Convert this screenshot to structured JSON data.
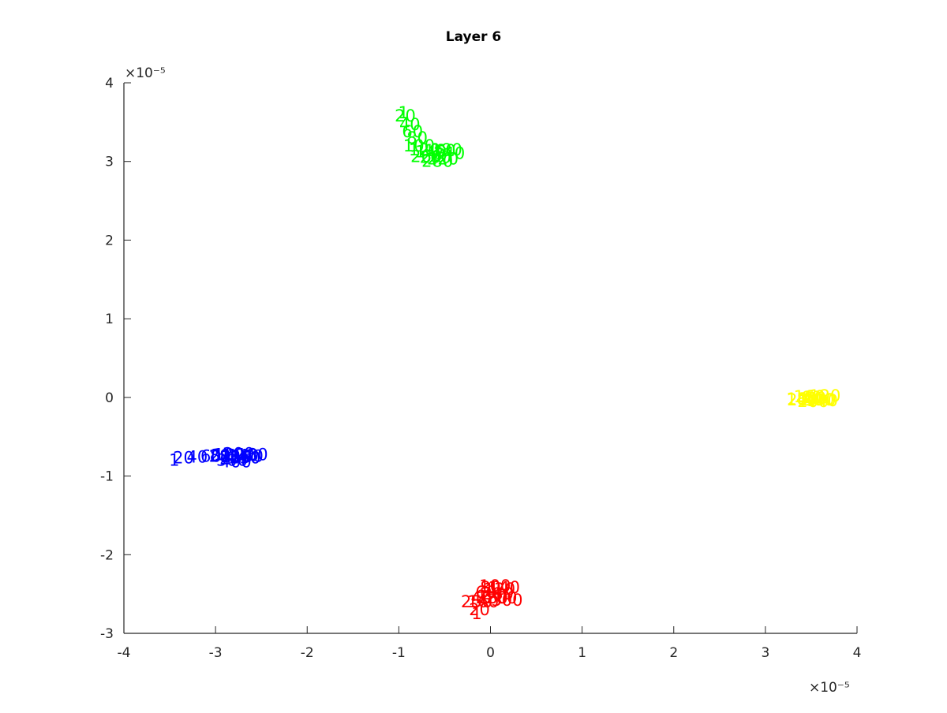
{
  "chart_data": {
    "type": "scatter",
    "title": "Layer 6",
    "xlabel": "",
    "ylabel": "",
    "xlim": [
      -4,
      4
    ],
    "ylim": [
      -3,
      4
    ],
    "x_exponent_label": "×10⁻⁵",
    "y_exponent_label": "×10⁻⁵",
    "xticks": [
      "-4",
      "-3",
      "-2",
      "-1",
      "0",
      "1",
      "2",
      "3",
      "4"
    ],
    "yticks": [
      "-3",
      "-2",
      "-1",
      "0",
      "1",
      "2",
      "3",
      "4"
    ],
    "grid": false,
    "legend": "none",
    "series": [
      {
        "color": "#00ff00",
        "points": [
          {
            "x": -0.95,
            "y": 3.62,
            "label": "1"
          },
          {
            "x": -0.93,
            "y": 3.58,
            "label": "20"
          },
          {
            "x": -0.88,
            "y": 3.47,
            "label": "40"
          },
          {
            "x": -0.85,
            "y": 3.38,
            "label": "60"
          },
          {
            "x": -0.8,
            "y": 3.3,
            "label": "80"
          },
          {
            "x": -0.78,
            "y": 3.2,
            "label": "100"
          },
          {
            "x": -0.72,
            "y": 3.15,
            "label": "120"
          },
          {
            "x": -0.65,
            "y": 3.12,
            "label": "140"
          },
          {
            "x": -0.55,
            "y": 3.14,
            "label": "160"
          },
          {
            "x": -0.48,
            "y": 3.15,
            "label": "180"
          },
          {
            "x": -0.6,
            "y": 3.05,
            "label": "200"
          },
          {
            "x": -0.52,
            "y": 3.03,
            "label": "220"
          },
          {
            "x": -0.45,
            "y": 3.1,
            "label": "240"
          },
          {
            "x": -0.7,
            "y": 3.06,
            "label": "260"
          },
          {
            "x": -0.58,
            "y": 3.0,
            "label": "280"
          }
        ]
      },
      {
        "color": "#0000ff",
        "points": [
          {
            "x": -3.45,
            "y": -0.8,
            "label": "1"
          },
          {
            "x": -3.35,
            "y": -0.77,
            "label": "20"
          },
          {
            "x": -3.2,
            "y": -0.76,
            "label": "40"
          },
          {
            "x": -3.05,
            "y": -0.75,
            "label": "60"
          },
          {
            "x": -2.95,
            "y": -0.74,
            "label": "80"
          },
          {
            "x": -2.85,
            "y": -0.73,
            "label": "100"
          },
          {
            "x": -2.78,
            "y": -0.76,
            "label": "120"
          },
          {
            "x": -2.7,
            "y": -0.74,
            "label": "140"
          },
          {
            "x": -2.65,
            "y": -0.75,
            "label": "160"
          },
          {
            "x": -2.6,
            "y": -0.73,
            "label": "180"
          },
          {
            "x": -2.75,
            "y": -0.72,
            "label": "200"
          },
          {
            "x": -2.82,
            "y": -0.8,
            "label": "300"
          },
          {
            "x": -2.78,
            "y": -0.82,
            "label": "400"
          },
          {
            "x": -2.68,
            "y": -0.77,
            "label": "250"
          },
          {
            "x": -2.9,
            "y": -0.75,
            "label": "280"
          }
        ]
      },
      {
        "color": "#ffff00",
        "points": [
          {
            "x": 3.35,
            "y": -0.03,
            "label": "20"
          },
          {
            "x": 3.45,
            "y": -0.02,
            "label": "40"
          },
          {
            "x": 3.5,
            "y": 0.0,
            "label": "60"
          },
          {
            "x": 3.55,
            "y": -0.01,
            "label": "80"
          },
          {
            "x": 3.6,
            "y": -0.03,
            "label": "100"
          },
          {
            "x": 3.65,
            "y": 0.02,
            "label": "120"
          },
          {
            "x": 3.62,
            "y": -0.04,
            "label": "140"
          },
          {
            "x": 3.48,
            "y": 0.01,
            "label": "160"
          },
          {
            "x": 3.4,
            "y": -0.02,
            "label": "180"
          },
          {
            "x": 3.52,
            "y": -0.05,
            "label": "200"
          },
          {
            "x": 3.58,
            "y": -0.03,
            "label": "300"
          }
        ]
      },
      {
        "color": "#ff0000",
        "points": [
          {
            "x": -0.15,
            "y": -2.75,
            "label": "1"
          },
          {
            "x": -0.12,
            "y": -2.7,
            "label": "20"
          },
          {
            "x": -0.1,
            "y": -2.55,
            "label": "40"
          },
          {
            "x": -0.05,
            "y": -2.48,
            "label": "60"
          },
          {
            "x": 0.0,
            "y": -2.42,
            "label": "80"
          },
          {
            "x": 0.05,
            "y": -2.4,
            "label": "100"
          },
          {
            "x": 0.1,
            "y": -2.44,
            "label": "120"
          },
          {
            "x": 0.15,
            "y": -2.42,
            "label": "140"
          },
          {
            "x": -0.08,
            "y": -2.6,
            "label": "160"
          },
          {
            "x": 0.02,
            "y": -2.55,
            "label": "180"
          },
          {
            "x": 0.12,
            "y": -2.55,
            "label": "200"
          },
          {
            "x": 0.18,
            "y": -2.58,
            "label": "300"
          },
          {
            "x": -0.15,
            "y": -2.6,
            "label": "250"
          },
          {
            "x": 0.08,
            "y": -2.5,
            "label": "280"
          }
        ]
      }
    ]
  }
}
